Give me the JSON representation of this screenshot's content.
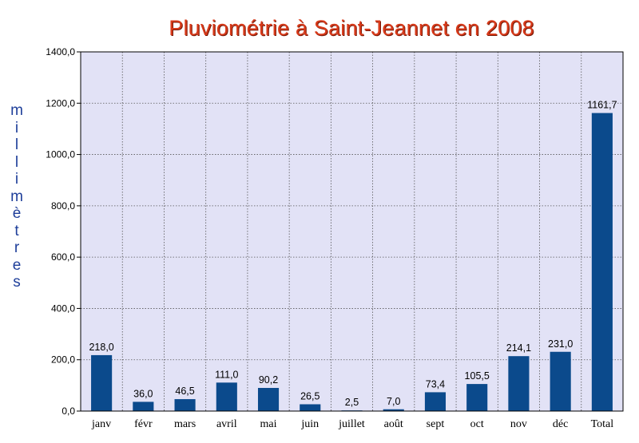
{
  "chart_data": {
    "type": "bar",
    "title": "Pluviométrie à Saint-Jeannet en 2008",
    "xlabel": "",
    "ylabel": "millimètres",
    "categories": [
      "janv",
      "févr",
      "mars",
      "avril",
      "mai",
      "juin",
      "juillet",
      "août",
      "sept",
      "oct",
      "nov",
      "déc",
      "Total"
    ],
    "values": [
      218.0,
      36.0,
      46.5,
      111.0,
      90.2,
      26.5,
      2.5,
      7.0,
      73.4,
      105.5,
      214.1,
      231.0,
      1161.7
    ],
    "value_labels": [
      "218,0",
      "36,0",
      "46,5",
      "111,0",
      "90,2",
      "26,5",
      "2,5",
      "7,0",
      "73,4",
      "105,5",
      "214,1",
      "231,0",
      "1161,7"
    ],
    "ylim": [
      0,
      1400
    ],
    "y_ticks": [
      0,
      200,
      400,
      600,
      800,
      1000,
      1200,
      1400
    ],
    "y_tick_labels": [
      "0,0",
      "200,0",
      "400,0",
      "600,0",
      "800,0",
      "1000,0",
      "1200,0",
      "1400,0"
    ],
    "grid": true,
    "legend": "none",
    "colors": {
      "bar": "#0b4a8c",
      "plot_background": "#e2e2f6",
      "title": "#d83a1a",
      "ylabel": "#1f3f9a",
      "grid": "#555555"
    }
  }
}
